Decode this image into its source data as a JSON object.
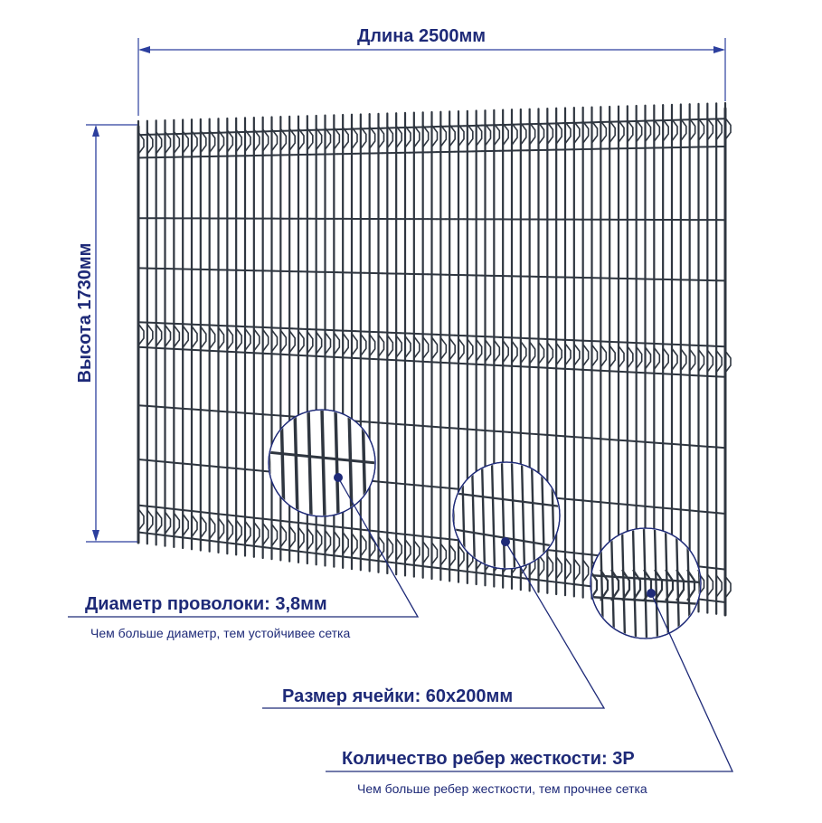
{
  "dimensions": {
    "length_label": "Длина 2500мм",
    "height_label": "Высота 1730мм"
  },
  "annotations": {
    "wire": {
      "title": "Диаметр проволоки: 3,8мм",
      "subtitle": "Чем больше диаметр, тем устойчивее сетка"
    },
    "cell": {
      "title": "Размер ячейки: 60х200мм"
    },
    "ribs": {
      "title": "Количество ребер жесткости: 3Р",
      "subtitle": "Чем больше ребер жесткости, тем прочнее сетка"
    }
  },
  "colors": {
    "accent": "#1e2a78",
    "dimension_line": "#2c3f9e",
    "wire": "#2f3640",
    "background": "#ffffff"
  },
  "panel": {
    "rib_count": 3
  }
}
